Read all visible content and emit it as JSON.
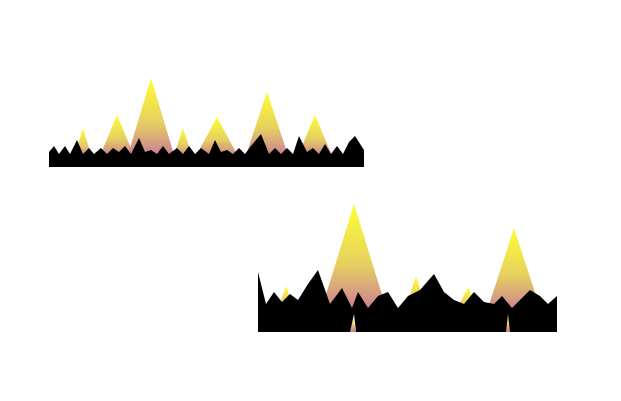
{
  "image": {
    "description_visible_text": "",
    "background_color": "#ffffff"
  },
  "colors": {
    "peak_top": "#ffff33",
    "peak_mid": "#e6d060",
    "peak_bottom": "#c9769a",
    "ground": "#000000"
  },
  "graphics": [
    {
      "id": "graphic-top",
      "name": "flame-mountain-strip-small"
    },
    {
      "id": "graphic-bottom",
      "name": "flame-mountain-strip-large"
    }
  ]
}
